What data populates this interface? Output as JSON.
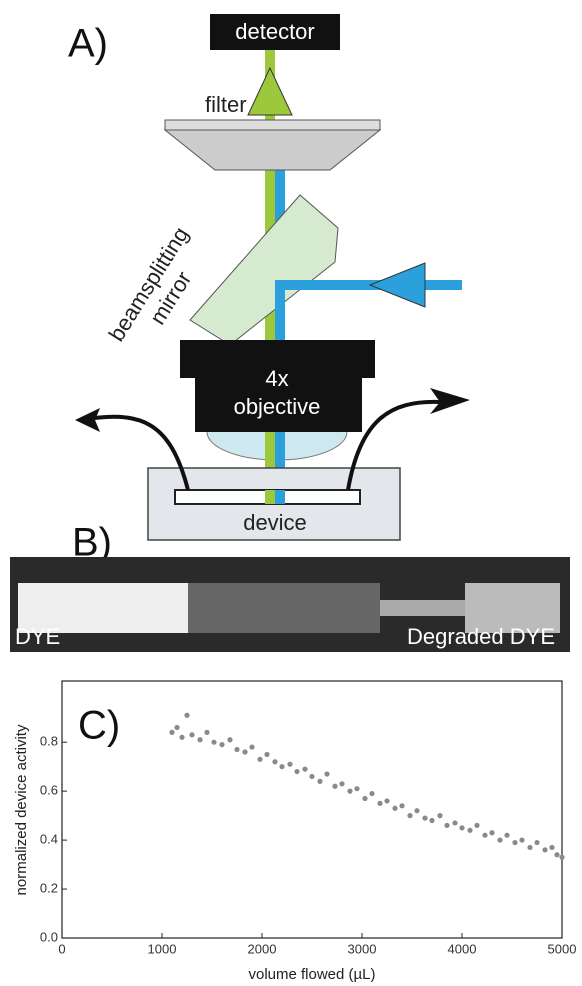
{
  "panel_labels": {
    "a": "A)",
    "b": "B)",
    "c": "C)"
  },
  "diagram": {
    "detector": "detector",
    "filter": "filter",
    "mirror_line1": "beamsplitting",
    "mirror_line2": "mirror",
    "objective_line1": "4x",
    "objective_line2": "objective",
    "device": "device"
  },
  "image": {
    "left_label": "DYE",
    "right_label": "Degraded DYE"
  },
  "chart_data": {
    "type": "scatter",
    "x_label": "volume flowed (µL)",
    "y_label": "normalized device activity",
    "color": "#8a8a8a",
    "x": [
      1100,
      1150,
      1200,
      1250,
      1300,
      1380,
      1450,
      1520,
      1600,
      1680,
      1750,
      1830,
      1900,
      1980,
      2050,
      2130,
      2200,
      2280,
      2350,
      2430,
      2500,
      2580,
      2650,
      2730,
      2800,
      2880,
      2950,
      3030,
      3100,
      3180,
      3250,
      3330,
      3400,
      3480,
      3550,
      3630,
      3700,
      3780,
      3850,
      3930,
      4000,
      4080,
      4150,
      4230,
      4300,
      4380,
      4450,
      4530,
      4600,
      4680,
      4750,
      4830,
      4900,
      4950,
      5000
    ],
    "values": [
      0.84,
      0.86,
      0.82,
      0.91,
      0.83,
      0.81,
      0.84,
      0.8,
      0.79,
      0.81,
      0.77,
      0.76,
      0.78,
      0.73,
      0.75,
      0.72,
      0.7,
      0.71,
      0.68,
      0.69,
      0.66,
      0.64,
      0.67,
      0.62,
      0.63,
      0.6,
      0.61,
      0.57,
      0.59,
      0.55,
      0.56,
      0.53,
      0.54,
      0.5,
      0.52,
      0.49,
      0.48,
      0.5,
      0.46,
      0.47,
      0.45,
      0.44,
      0.46,
      0.42,
      0.43,
      0.4,
      0.42,
      0.39,
      0.4,
      0.37,
      0.39,
      0.36,
      0.37,
      0.34,
      0.33
    ],
    "xlim": [
      0,
      5000
    ],
    "xticks": [
      0,
      1000,
      2000,
      3000,
      4000,
      5000
    ],
    "ylim": [
      0,
      1.05
    ],
    "yticks": [
      {
        "value": 0,
        "label": "0.0"
      },
      0.2,
      0.4,
      0.6,
      0.8
    ]
  }
}
